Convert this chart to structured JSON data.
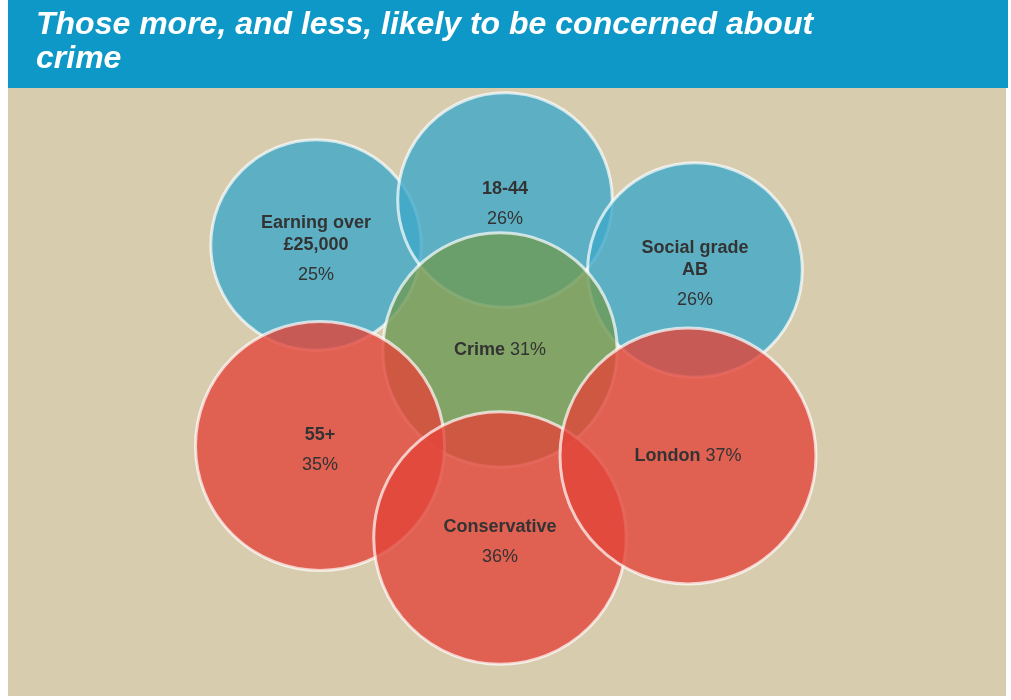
{
  "chart_data": {
    "type": "other",
    "title": "Those more, and less, likely to be concerned about crime",
    "categories": [
      "Earning over £25,000",
      "18-44",
      "Social grade AB",
      "Crime",
      "55+",
      "Conservative",
      "London"
    ],
    "values": [
      25,
      26,
      26,
      31,
      35,
      36,
      37
    ],
    "value_labels": [
      "25%",
      "26%",
      "26%",
      "31%",
      "35%",
      "36%",
      "37%"
    ],
    "colors": [
      "#3fa9c9",
      "#3fa9c9",
      "#3fa9c9",
      "#6e9a55",
      "#e2453a",
      "#e2453a",
      "#e2453a"
    ]
  }
}
